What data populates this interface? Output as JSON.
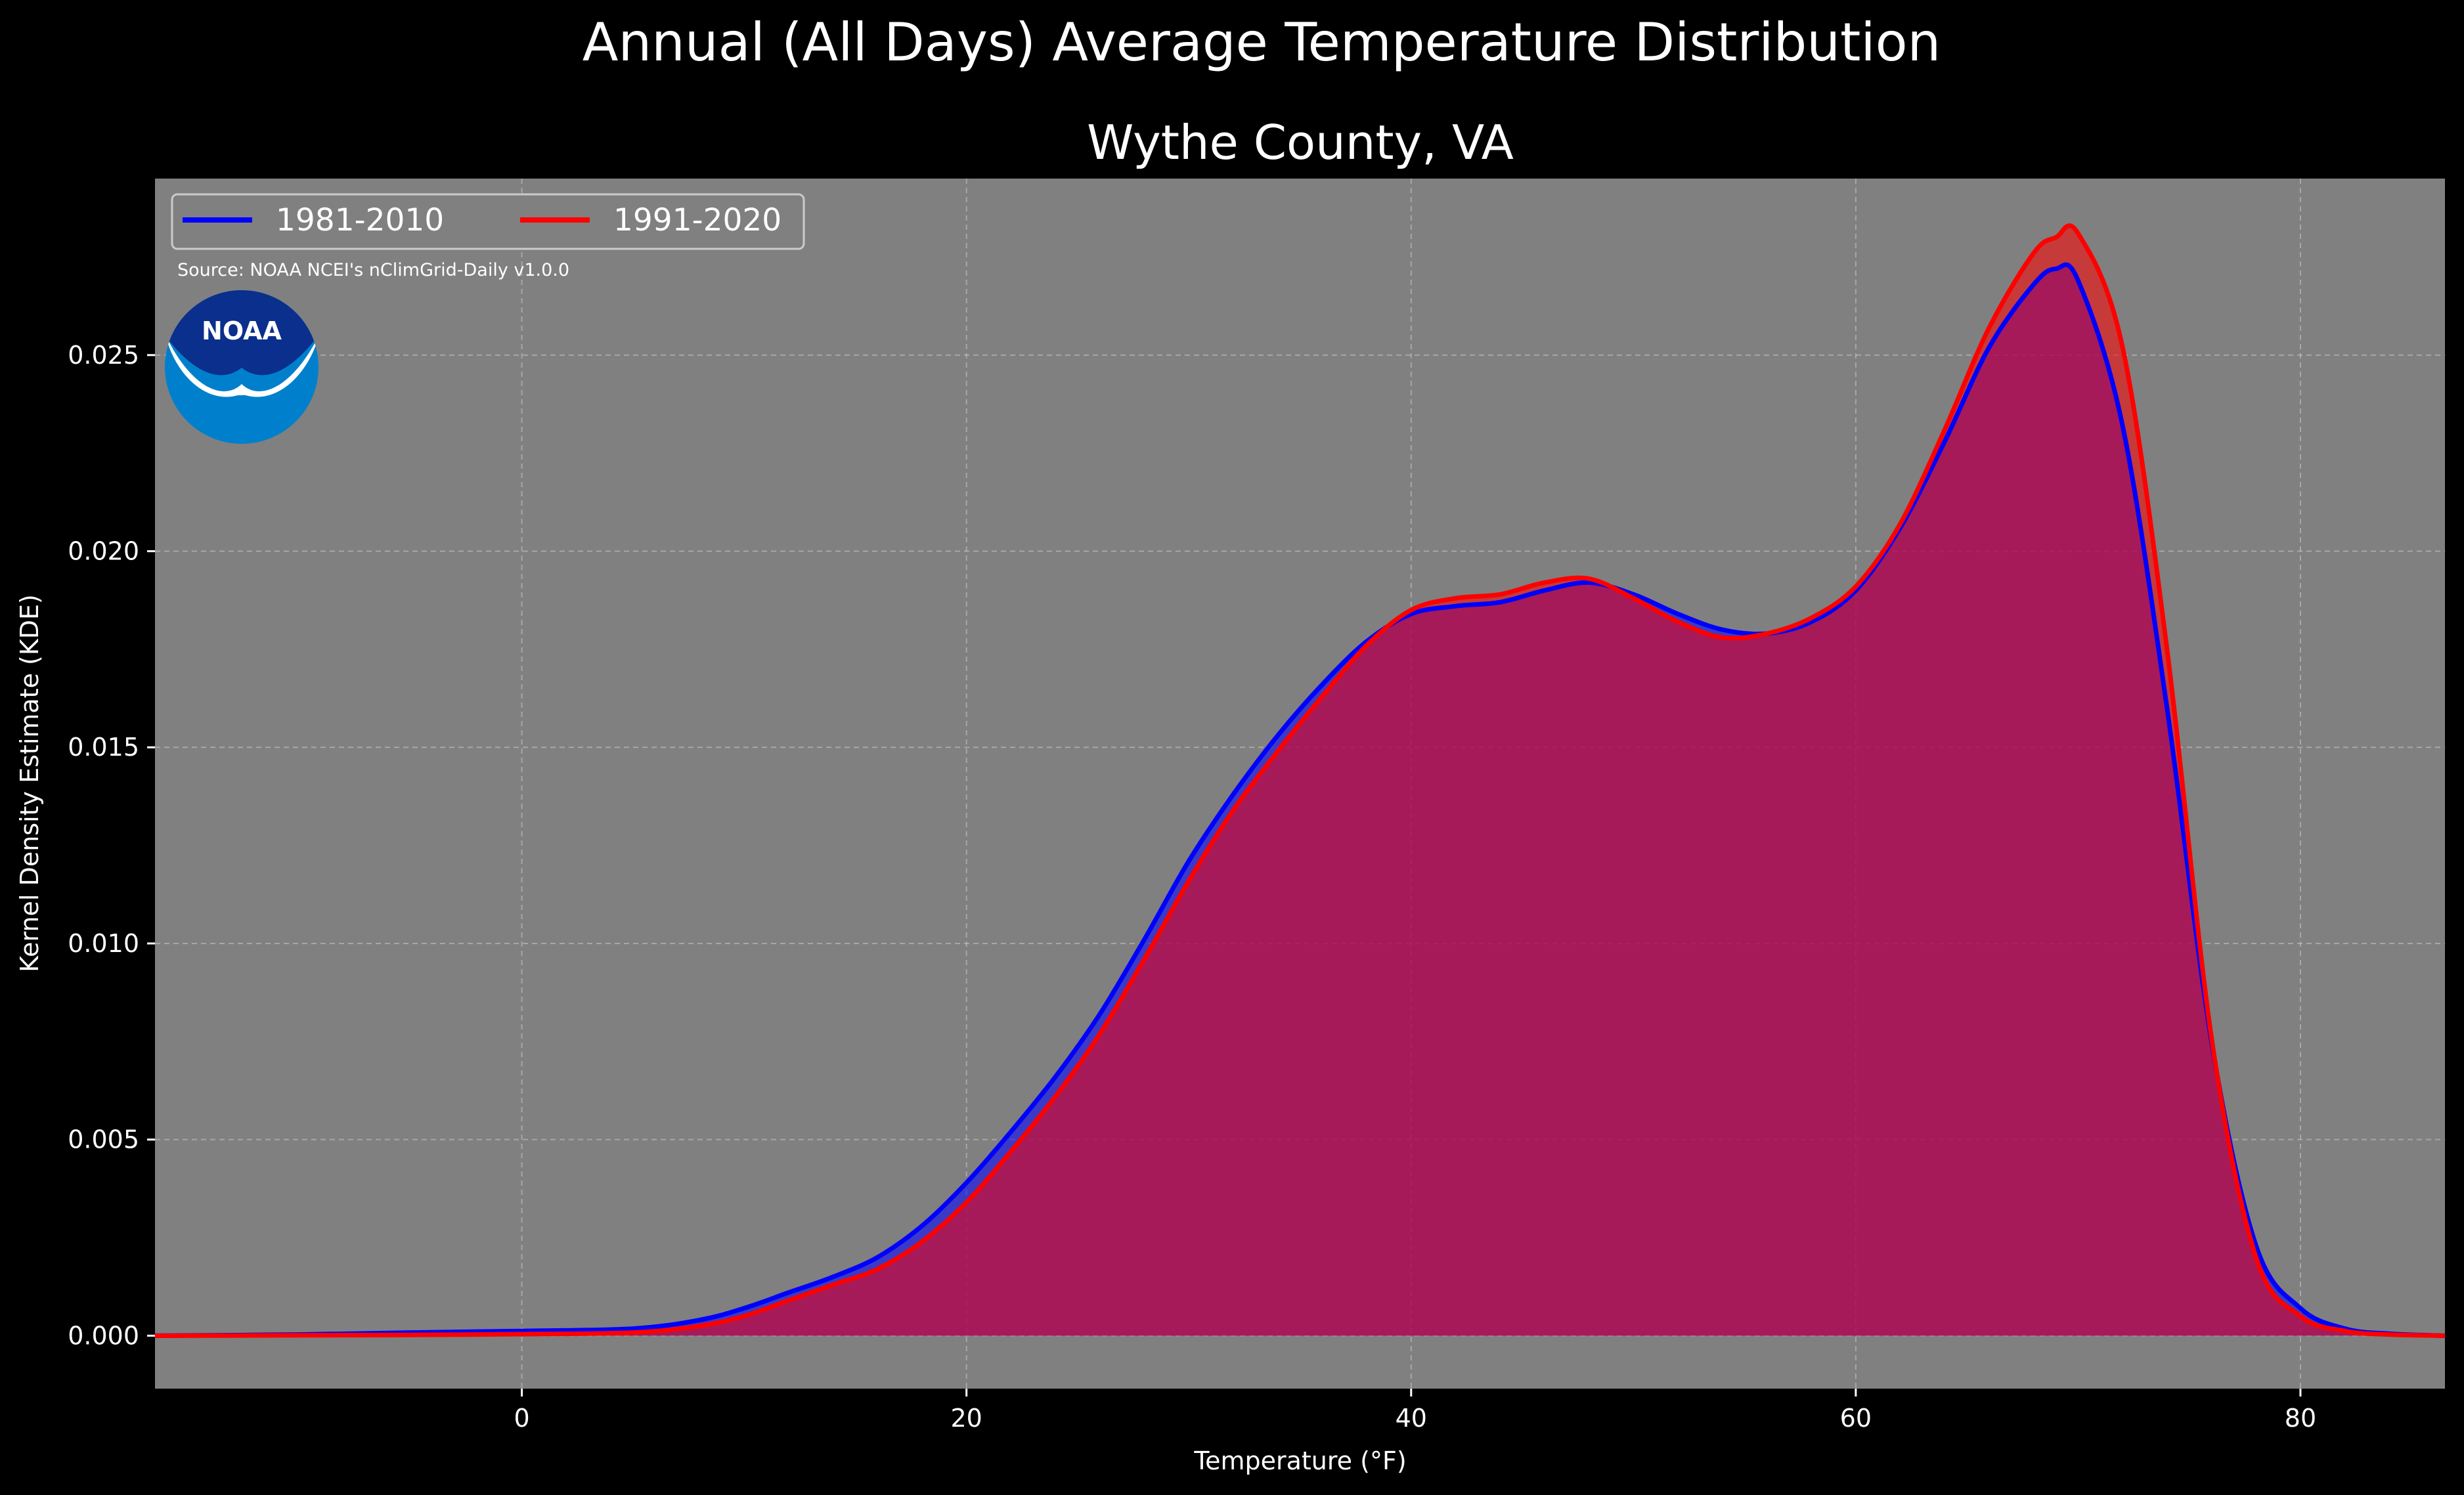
{
  "chart_data": {
    "type": "area",
    "title": "Annual (All Days) Average Temperature Distribution",
    "subtitle": "Wythe County, VA",
    "xlabel": "Temperature (°F)",
    "ylabel": "Kernel Density Estimate (KDE)",
    "xlim": [
      -16.5,
      86.5
    ],
    "ylim": [
      -0.00135,
      0.0295
    ],
    "xticks": [
      0,
      20,
      40,
      60,
      80
    ],
    "xtick_labels": [
      "0",
      "20",
      "40",
      "60",
      "80"
    ],
    "yticks": [
      0.0,
      0.005,
      0.01,
      0.015,
      0.02,
      0.025
    ],
    "ytick_labels": [
      "0.000",
      "0.005",
      "0.010",
      "0.015",
      "0.020",
      "0.025"
    ],
    "grid": true,
    "legend_position": "top-left",
    "source": "Source: NOAA NCEI's nClimGrid-Daily v1.0.0",
    "logo_text": "NOAA",
    "colors": {
      "background": "#000000",
      "plot_background": "#808080",
      "series_1": "#0000ff",
      "series_2": "#ff0000",
      "overlap_fill": "#9e1f5c",
      "logo_dark": "#0a2f8c",
      "logo_light": "#0080cc"
    },
    "x": [
      -16.5,
      -10,
      -5,
      0,
      5,
      8,
      10,
      12,
      14,
      16,
      18,
      20,
      22,
      24,
      26,
      28,
      30,
      32,
      34,
      36,
      38,
      40,
      42,
      44,
      46,
      48,
      50,
      52,
      54,
      56,
      58,
      60,
      62,
      64,
      66,
      68,
      69,
      70,
      72,
      74,
      76,
      78,
      80,
      82,
      84,
      86.5
    ],
    "series": [
      {
        "name": "1981-2010",
        "values": [
          0.0,
          3e-05,
          8e-05,
          0.00012,
          0.00018,
          0.0004,
          0.0007,
          0.0011,
          0.0015,
          0.002,
          0.0028,
          0.0039,
          0.0052,
          0.0066,
          0.0082,
          0.0101,
          0.0121,
          0.0138,
          0.0153,
          0.0166,
          0.0177,
          0.0184,
          0.0186,
          0.0187,
          0.019,
          0.0192,
          0.0189,
          0.0184,
          0.018,
          0.0179,
          0.0182,
          0.019,
          0.0206,
          0.0228,
          0.0252,
          0.0268,
          0.0272,
          0.0269,
          0.0232,
          0.016,
          0.0075,
          0.0023,
          0.0007,
          0.00018,
          5e-05,
          0.0
        ]
      },
      {
        "name": "1991-2020",
        "values": [
          0.0,
          1e-05,
          2e-05,
          4e-05,
          8e-05,
          0.00025,
          0.0005,
          0.0009,
          0.0013,
          0.0017,
          0.0024,
          0.0034,
          0.0047,
          0.0061,
          0.0077,
          0.0096,
          0.0116,
          0.0134,
          0.0149,
          0.0163,
          0.0176,
          0.0185,
          0.0188,
          0.0189,
          0.0192,
          0.0193,
          0.0188,
          0.0182,
          0.0178,
          0.0179,
          0.0183,
          0.0191,
          0.0207,
          0.0231,
          0.0257,
          0.0276,
          0.028,
          0.0281,
          0.0252,
          0.0175,
          0.0076,
          0.002,
          0.0005,
          0.00012,
          3e-05,
          0.0
        ]
      }
    ]
  }
}
